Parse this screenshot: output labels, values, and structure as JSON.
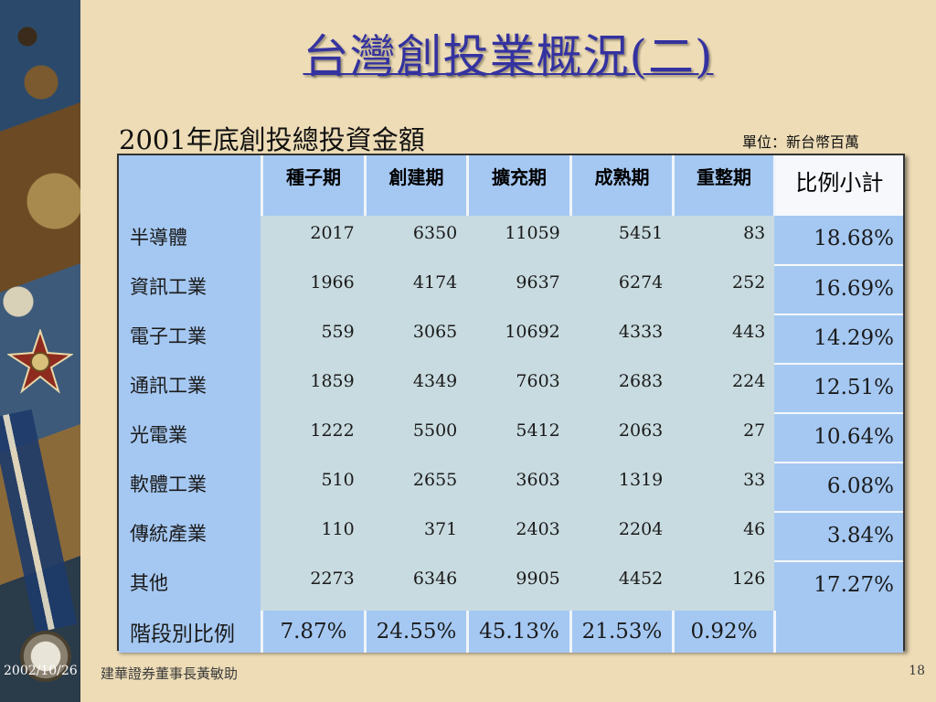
{
  "title": "台灣創投業概況(二)",
  "subtitle": "2001年底創投總投資金額",
  "unit": "單位：新台幣百萬",
  "table": {
    "header": [
      "",
      "種子期",
      "創建期",
      "擴充期",
      "成熟期",
      "重整期",
      "比例小計"
    ],
    "rows": [
      {
        "label": "半導體",
        "values": [
          "2017",
          "6350",
          "11059",
          "5451",
          "83"
        ],
        "pct": "18.68%"
      },
      {
        "label": "資訊工業",
        "values": [
          "1966",
          "4174",
          "9637",
          "6274",
          "252"
        ],
        "pct": "16.69%"
      },
      {
        "label": "電子工業",
        "values": [
          "559",
          "3065",
          "10692",
          "4333",
          "443"
        ],
        "pct": "14.29%"
      },
      {
        "label": "通訊工業",
        "values": [
          "1859",
          "4349",
          "7603",
          "2683",
          "224"
        ],
        "pct": "12.51%"
      },
      {
        "label": "光電業",
        "values": [
          "1222",
          "5500",
          "5412",
          "2063",
          "27"
        ],
        "pct": "10.64%"
      },
      {
        "label": "軟體工業",
        "values": [
          "510",
          "2655",
          "3603",
          "1319",
          "33"
        ],
        "pct": "6.08%"
      },
      {
        "label": "傳統產業",
        "values": [
          "110",
          "371",
          "2403",
          "2204",
          "46"
        ],
        "pct": "3.84%"
      },
      {
        "label": "其他",
        "values": [
          "2273",
          "6346",
          "9905",
          "4452",
          "126"
        ],
        "pct": "17.27%"
      }
    ],
    "footer": {
      "label": "階段別比例",
      "values": [
        "7.87%",
        "24.55%",
        "45.13%",
        "21.53%",
        "0.92%"
      ]
    }
  },
  "footer": {
    "date": "2002/10/26",
    "author": "建華證券董事長黃敏助",
    "page": "18"
  }
}
